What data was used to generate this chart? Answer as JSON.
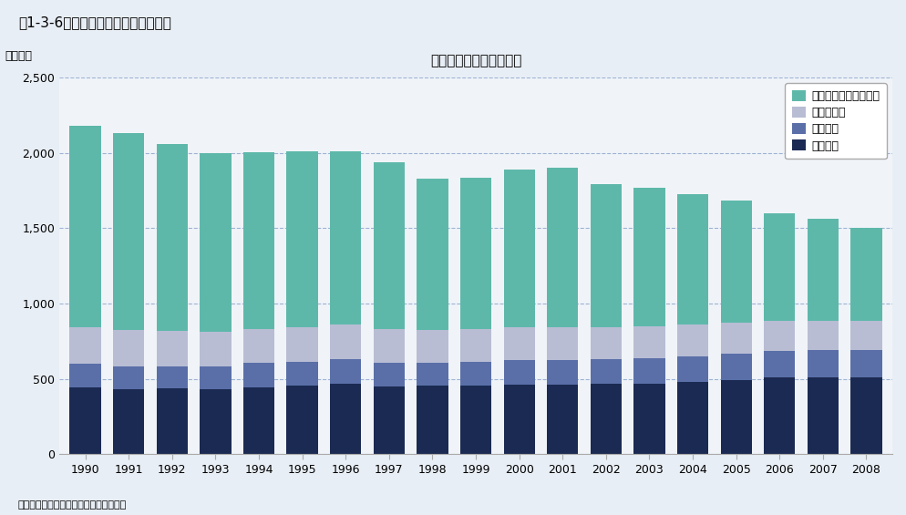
{
  "title": "我が国の天然資源投入量",
  "figure_title": "図1-3-6　我が国の天然資源等投入量",
  "ylabel": "百万トン",
  "source": "出典：貿易統計、資源・エネルギー統計",
  "years": [
    1990,
    1991,
    1992,
    1993,
    1994,
    1995,
    1996,
    1997,
    1998,
    1999,
    2000,
    2001,
    2002,
    2003,
    2004,
    2005,
    2006,
    2007,
    2008
  ],
  "fossil_fuel": [
    445,
    430,
    435,
    430,
    445,
    455,
    465,
    450,
    455,
    455,
    460,
    460,
    465,
    470,
    480,
    490,
    510,
    510,
    510
  ],
  "metal": [
    155,
    155,
    150,
    155,
    160,
    160,
    165,
    155,
    150,
    155,
    165,
    165,
    165,
    165,
    170,
    175,
    175,
    180,
    180
  ],
  "biomass": [
    245,
    240,
    235,
    225,
    225,
    230,
    230,
    225,
    220,
    220,
    220,
    220,
    215,
    215,
    210,
    205,
    200,
    195,
    195
  ],
  "non_metal": [
    1335,
    1305,
    1240,
    1190,
    1175,
    1165,
    1150,
    1110,
    1005,
    1005,
    1045,
    1055,
    950,
    915,
    865,
    815,
    715,
    675,
    615
  ],
  "color_fossil": "#1b2a52",
  "color_metal": "#5a6fa8",
  "color_biomass": "#b8bdd4",
  "color_non_metal": "#5eb8aa",
  "legend_labels": [
    "非金属鉱物（砂利等）",
    "バイオマス",
    "金属資源",
    "化石燃料"
  ],
  "ylim": [
    0,
    2500
  ],
  "yticks": [
    0,
    500,
    1000,
    1500,
    2000,
    2500
  ],
  "background_color": "#e8eef5",
  "plot_background": "#f0f4f8",
  "grid_color": "#6688bb",
  "title_fontsize": 11,
  "fig_title_fontsize": 11,
  "tick_fontsize": 9,
  "legend_fontsize": 9,
  "bar_width": 0.72
}
